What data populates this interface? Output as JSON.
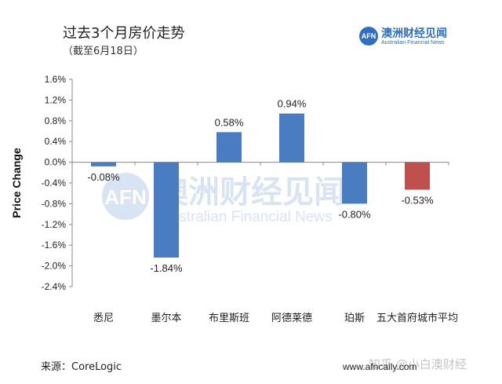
{
  "header": {
    "title": "过去3个月房价走势",
    "subtitle": "（截至6月18日）"
  },
  "logo": {
    "mark": "AFN",
    "name_cn": "澳洲财经见闻",
    "name_en": "Australian Financial News"
  },
  "watermark": {
    "cn": "澳洲财经见闻",
    "en": "Australian Financial News",
    "zhihu": "知乎 @小白澳财经"
  },
  "footer": {
    "source": "来源：CoreLogic",
    "website": "www.afncaily.com"
  },
  "chart_data": {
    "type": "bar",
    "categories": [
      "悉尼",
      "墨尔本",
      "布里斯班",
      "阿德莱德",
      "珀斯",
      "五大首府城市平均"
    ],
    "values": [
      -0.08,
      -1.84,
      0.58,
      0.94,
      -0.8,
      -0.53
    ],
    "data_labels": [
      "-0.08%",
      "-1.84%",
      "0.58%",
      "0.94%",
      "-0.80%",
      "-0.53%"
    ],
    "ylabel": "Price Change",
    "xlabel": "",
    "ylim": [
      -2.4,
      1.6
    ],
    "yticks": [
      1.6,
      1.2,
      0.8,
      0.4,
      0.0,
      -0.4,
      -0.8,
      -1.2,
      -1.6,
      -2.0,
      -2.4
    ],
    "ytick_labels": [
      "1.6%",
      "1.2%",
      "0.8%",
      "0.4%",
      "0.0%",
      "-0.4%",
      "-0.8%",
      "-1.2%",
      "-1.6%",
      "-2.0%",
      "-2.4%"
    ],
    "grid": false,
    "legend": "none",
    "colors": [
      "#4a7cc1",
      "#4a7cc1",
      "#4a7cc1",
      "#4a7cc1",
      "#4a7cc1",
      "#c0504d"
    ]
  }
}
